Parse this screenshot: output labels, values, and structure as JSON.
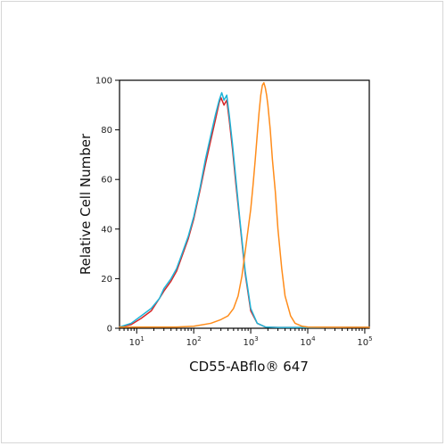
{
  "chart_data": {
    "type": "line",
    "title": "",
    "xlabel": "CD55-ABflo® 647",
    "ylabel": "Relative Cell Number",
    "xscale": "log",
    "xlim": [
      5,
      120000
    ],
    "ylim": [
      0,
      100
    ],
    "yticks": [
      0,
      20,
      40,
      60,
      80,
      100
    ],
    "xticks": [
      {
        "value": 10,
        "base": "10",
        "exp": "1"
      },
      {
        "value": 100,
        "base": "10",
        "exp": "2"
      },
      {
        "value": 1000,
        "base": "10",
        "exp": "3"
      },
      {
        "value": 10000,
        "base": "10",
        "exp": "4"
      },
      {
        "value": 100000,
        "base": "10",
        "exp": "5"
      }
    ],
    "grid": false,
    "legend": "none",
    "series": [
      {
        "color": "#d62728",
        "points": [
          [
            5,
            0.5
          ],
          [
            8,
            1.5
          ],
          [
            12,
            4
          ],
          [
            18,
            7
          ],
          [
            25,
            12
          ],
          [
            30,
            15
          ],
          [
            40,
            19
          ],
          [
            50,
            23
          ],
          [
            60,
            28
          ],
          [
            80,
            36
          ],
          [
            100,
            44
          ],
          [
            130,
            56
          ],
          [
            160,
            66
          ],
          [
            200,
            76
          ],
          [
            240,
            84
          ],
          [
            280,
            91
          ],
          [
            300,
            93
          ],
          [
            340,
            90
          ],
          [
            380,
            92
          ],
          [
            420,
            84
          ],
          [
            480,
            72
          ],
          [
            550,
            58
          ],
          [
            650,
            42
          ],
          [
            800,
            22
          ],
          [
            1000,
            7
          ],
          [
            1300,
            2
          ],
          [
            1800,
            0.5
          ],
          [
            3000,
            0.3
          ],
          [
            10000,
            0.3
          ],
          [
            50000,
            0.4
          ],
          [
            120000,
            0.4
          ]
        ]
      },
      {
        "color": "#1eb4d8",
        "points": [
          [
            5,
            0.5
          ],
          [
            8,
            2
          ],
          [
            12,
            5
          ],
          [
            18,
            8
          ],
          [
            25,
            12
          ],
          [
            30,
            16
          ],
          [
            40,
            20
          ],
          [
            50,
            24
          ],
          [
            60,
            29
          ],
          [
            80,
            37
          ],
          [
            100,
            45
          ],
          [
            130,
            57
          ],
          [
            160,
            68
          ],
          [
            200,
            78
          ],
          [
            240,
            86
          ],
          [
            280,
            92
          ],
          [
            310,
            95
          ],
          [
            340,
            92
          ],
          [
            380,
            94
          ],
          [
            420,
            86
          ],
          [
            480,
            74
          ],
          [
            550,
            60
          ],
          [
            650,
            43
          ],
          [
            800,
            23
          ],
          [
            1000,
            8
          ],
          [
            1300,
            2
          ],
          [
            1800,
            0.5
          ],
          [
            3000,
            0.3
          ],
          [
            10000,
            0.3
          ],
          [
            50000,
            0.4
          ],
          [
            120000,
            0.4
          ]
        ]
      },
      {
        "color": "#ff8c1a",
        "points": [
          [
            5,
            0.5
          ],
          [
            50,
            0.5
          ],
          [
            100,
            0.8
          ],
          [
            200,
            2
          ],
          [
            300,
            3.5
          ],
          [
            400,
            5
          ],
          [
            500,
            8
          ],
          [
            600,
            13
          ],
          [
            700,
            21
          ],
          [
            800,
            31
          ],
          [
            900,
            40
          ],
          [
            1000,
            48
          ],
          [
            1100,
            58
          ],
          [
            1200,
            68
          ],
          [
            1300,
            78
          ],
          [
            1400,
            87
          ],
          [
            1500,
            94
          ],
          [
            1600,
            98
          ],
          [
            1700,
            99
          ],
          [
            1800,
            97
          ],
          [
            1900,
            94
          ],
          [
            2000,
            90
          ],
          [
            2200,
            80
          ],
          [
            2400,
            68
          ],
          [
            2700,
            55
          ],
          [
            3000,
            40
          ],
          [
            3500,
            24
          ],
          [
            4000,
            13
          ],
          [
            5000,
            5
          ],
          [
            6000,
            2
          ],
          [
            8000,
            0.8
          ],
          [
            10000,
            0.5
          ],
          [
            50000,
            0.4
          ],
          [
            120000,
            0.4
          ]
        ]
      }
    ]
  }
}
